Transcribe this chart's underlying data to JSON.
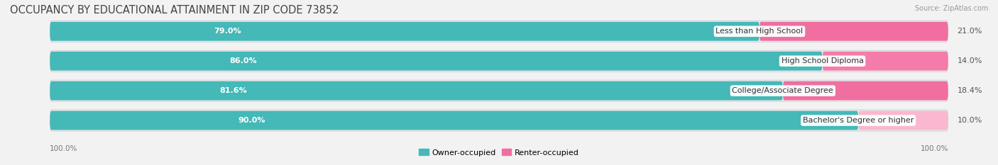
{
  "title": "OCCUPANCY BY EDUCATIONAL ATTAINMENT IN ZIP CODE 73852",
  "source": "Source: ZipAtlas.com",
  "categories": [
    "Less than High School",
    "High School Diploma",
    "College/Associate Degree",
    "Bachelor's Degree or higher"
  ],
  "owner_values": [
    79.0,
    86.0,
    81.6,
    90.0
  ],
  "renter_values": [
    21.0,
    14.0,
    18.4,
    10.0
  ],
  "owner_color": "#45B8B8",
  "renter_colors": [
    "#F06EA0",
    "#F47CAA",
    "#F06EA0",
    "#F9B8D0"
  ],
  "background_color": "#f2f2f2",
  "bar_bg_color": "#e0e0e0",
  "bar_bg_color2": "#ebebeb",
  "title_fontsize": 10.5,
  "label_fontsize": 8.0,
  "value_fontsize": 8.0,
  "tick_fontsize": 7.5,
  "legend_fontsize": 8.0,
  "x_label": "100.0%"
}
